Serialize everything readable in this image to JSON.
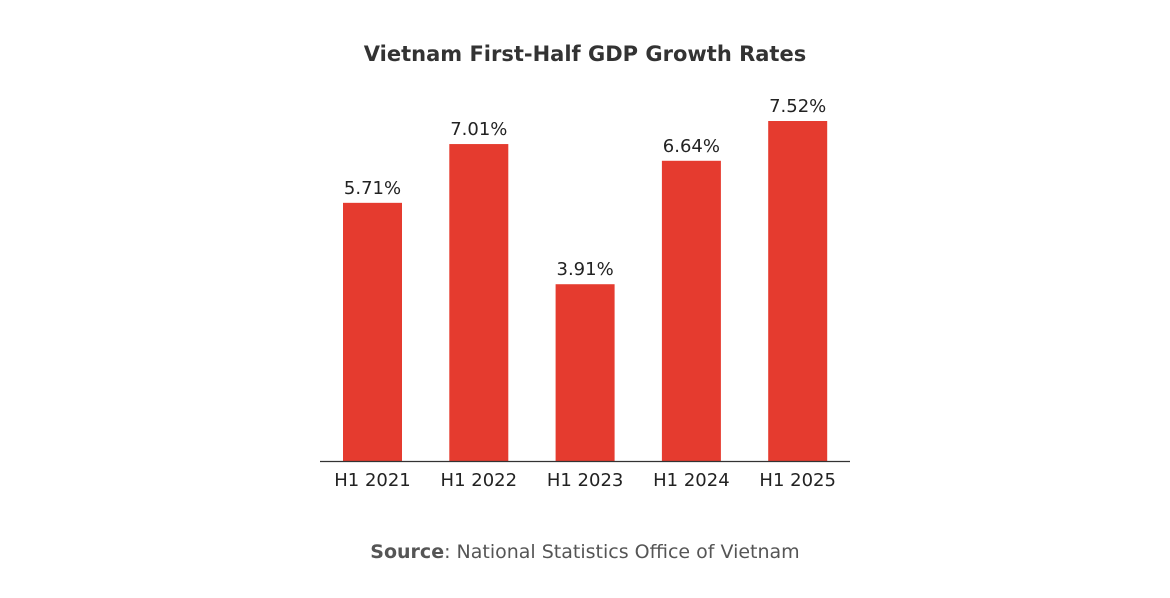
{
  "chart_data": {
    "type": "bar",
    "title": "Vietnam First-Half GDP Growth Rates",
    "categories": [
      "H1 2021",
      "H1 2022",
      "H1 2023",
      "H1 2024",
      "H1 2025"
    ],
    "values": [
      5.71,
      7.01,
      3.91,
      6.64,
      7.52
    ],
    "data_labels": [
      "5.71%",
      "7.01%",
      "3.91%",
      "6.64%",
      "7.52%"
    ],
    "xlabel": "",
    "ylabel": "",
    "ylim": [
      0,
      7.52
    ],
    "grid": false,
    "bar_color": "#e53b2f"
  },
  "source": {
    "label": "Source",
    "text": ": National Statistics Office of Vietnam"
  }
}
